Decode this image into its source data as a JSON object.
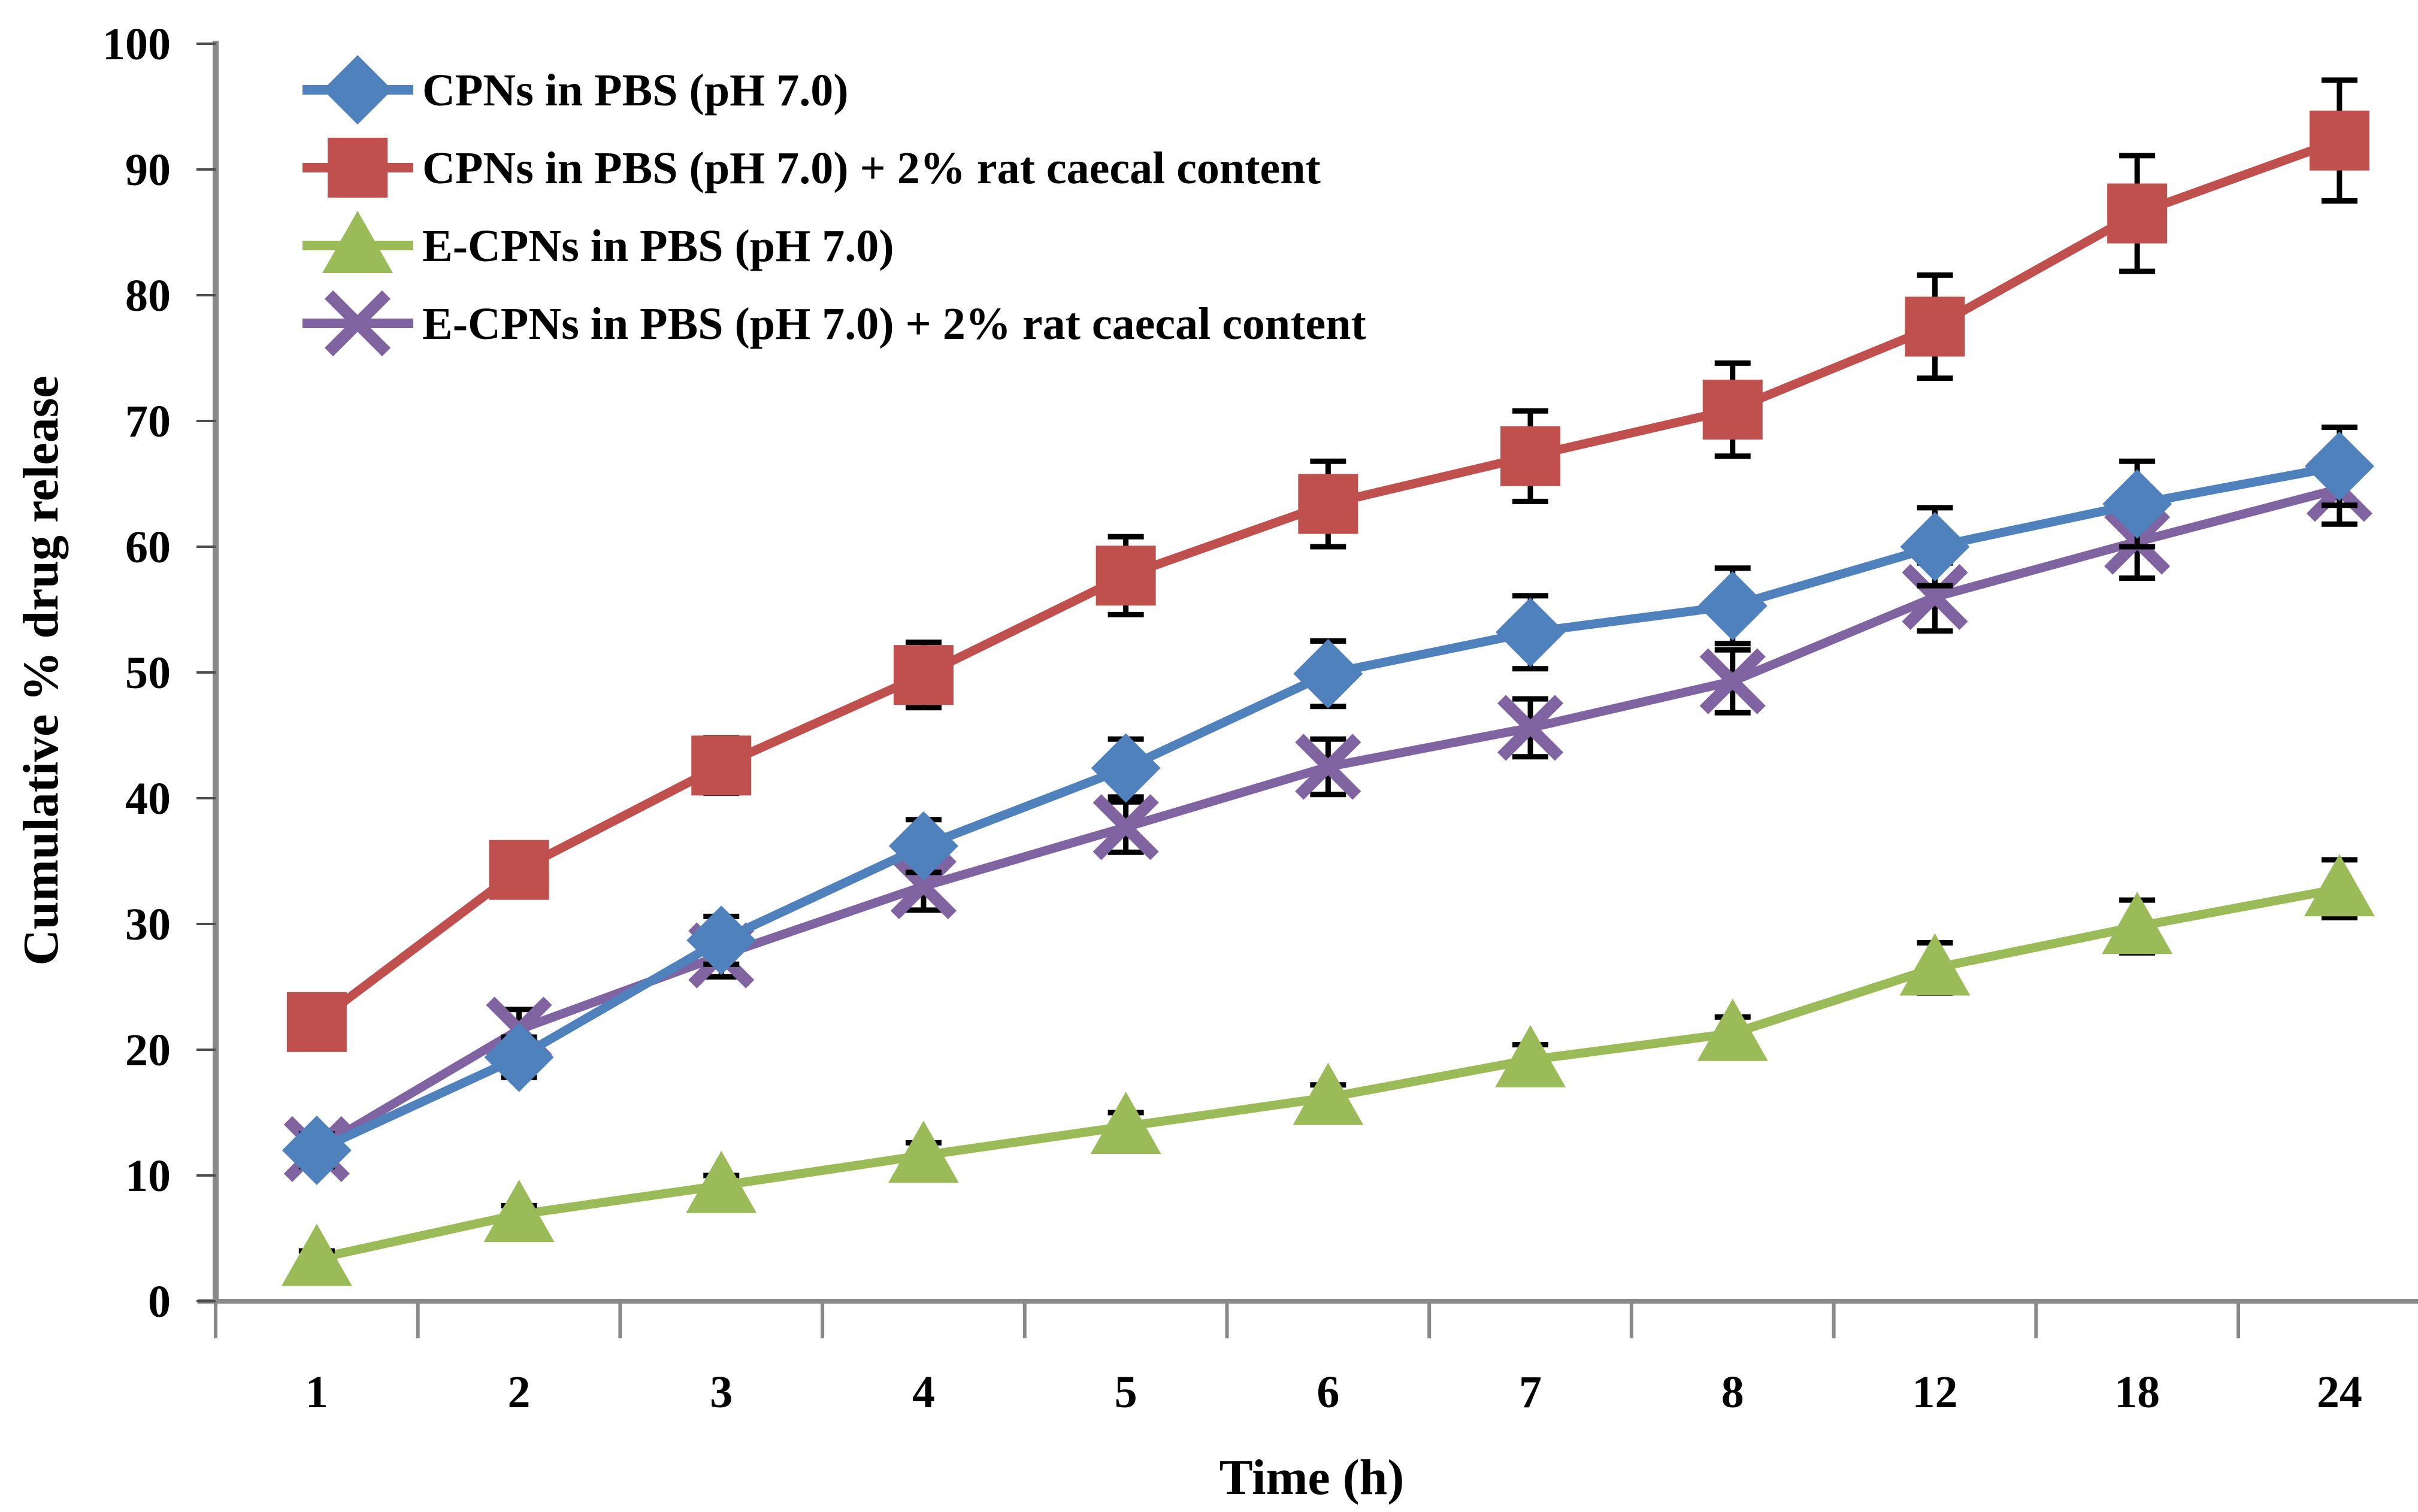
{
  "chart_data": {
    "type": "line",
    "title": "",
    "xlabel": "Time (h)",
    "ylabel": "Cumulative  % drug release",
    "categories": [
      "1",
      "2",
      "3",
      "4",
      "5",
      "6",
      "7",
      "8",
      "12",
      "18",
      "24"
    ],
    "y_ticks": [
      "0",
      "10",
      "20",
      "30",
      "40",
      "50",
      "60",
      "70",
      "80",
      "90",
      "100"
    ],
    "ylim": [
      0,
      100
    ],
    "grid": false,
    "legend_position": "top-left-inside",
    "axis_color": "#898989",
    "tick_color": "#4d4d4d",
    "error_bar_color": "#000000",
    "series": [
      {
        "name": "CPNs in PBS (pH 7.0)",
        "marker": "diamond",
        "color": "#4F81BD",
        "values": [
          12.0,
          19.4,
          28.7,
          36.2,
          42.4,
          49.9,
          53.2,
          55.3,
          60.0,
          63.4,
          66.4
        ],
        "errors": [
          1.3,
          1.6,
          1.9,
          2.1,
          2.3,
          2.6,
          2.9,
          3.0,
          3.1,
          3.4,
          3.1
        ]
      },
      {
        "name": "CPNs in PBS (pH 7.0) + 2% rat caecal content",
        "marker": "square",
        "color": "#C0504D",
        "values": [
          22.2,
          34.3,
          42.6,
          49.8,
          57.7,
          63.4,
          67.2,
          70.9,
          77.5,
          86.5,
          92.3
        ],
        "errors": [
          1.4,
          1.8,
          2.2,
          2.6,
          3.1,
          3.4,
          3.6,
          3.7,
          4.1,
          4.6,
          4.8
        ]
      },
      {
        "name": "E-CPNs in PBS (pH 7.0)",
        "marker": "triangle",
        "color": "#9BBB59",
        "values": [
          3.4,
          6.9,
          9.2,
          11.6,
          13.9,
          16.2,
          19.2,
          21.3,
          26.5,
          29.8,
          32.8
        ],
        "errors": [
          0.6,
          0.7,
          0.8,
          1.0,
          1.1,
          1.0,
          1.2,
          1.3,
          2.0,
          2.1,
          2.3
        ]
      },
      {
        "name": "E-CPNs in PBS (pH 7.0) + 2% rat caecal content",
        "marker": "x",
        "color": "#8064A2",
        "values": [
          12.1,
          21.6,
          27.5,
          33.0,
          37.7,
          42.5,
          45.6,
          49.3,
          56.0,
          60.4,
          64.6
        ],
        "errors": [
          1.0,
          1.6,
          1.7,
          1.9,
          2.0,
          2.2,
          2.3,
          2.5,
          2.7,
          2.9,
          2.8
        ]
      }
    ]
  }
}
